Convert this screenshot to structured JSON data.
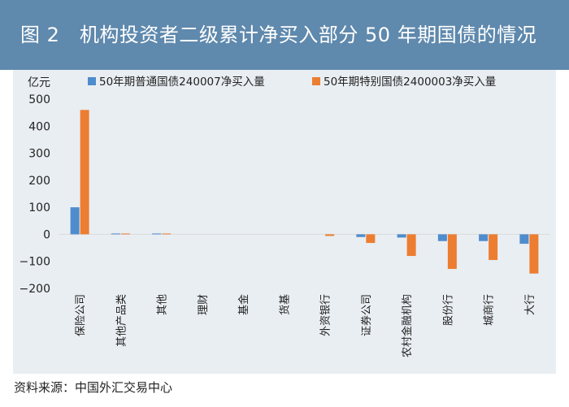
{
  "header": {
    "title": "图 2　机构投资者二级累计净买入部分 50 年期国债的情况"
  },
  "source": "资料来源：中国外汇交易中心",
  "colors": {
    "series1": "#4e8ccd",
    "series2": "#ed7d31",
    "header_bg": "#5f89ad",
    "panel_bg": "#e9eef2",
    "gridline": "#d9d9d9"
  },
  "chart_data": {
    "type": "bar",
    "title": "",
    "unit": "亿元",
    "categories": [
      "保险公司",
      "其他产品类",
      "其他",
      "理财",
      "基金",
      "货基",
      "外资银行",
      "证券公司",
      "农村金融机构",
      "股份行",
      "城商行",
      "大行"
    ],
    "series": [
      {
        "name": "50年期普通国债240007净买入量",
        "values": [
          100,
          3,
          2,
          0,
          0,
          0,
          0,
          -10,
          -12,
          -25,
          -25,
          -35
        ]
      },
      {
        "name": "50年期特别国债2400003净买入量",
        "values": [
          460,
          3,
          1,
          0,
          0,
          0,
          -6,
          -32,
          -80,
          -128,
          -95,
          -145
        ]
      }
    ],
    "ylim": [
      -200,
      500
    ],
    "yticks": [
      500,
      400,
      300,
      200,
      100,
      0,
      -100,
      -200
    ],
    "ytick_labels": [
      "500",
      "400",
      "300",
      "200",
      "100",
      "0",
      "−100",
      "−200"
    ],
    "legend_position": "top",
    "grid": false
  }
}
